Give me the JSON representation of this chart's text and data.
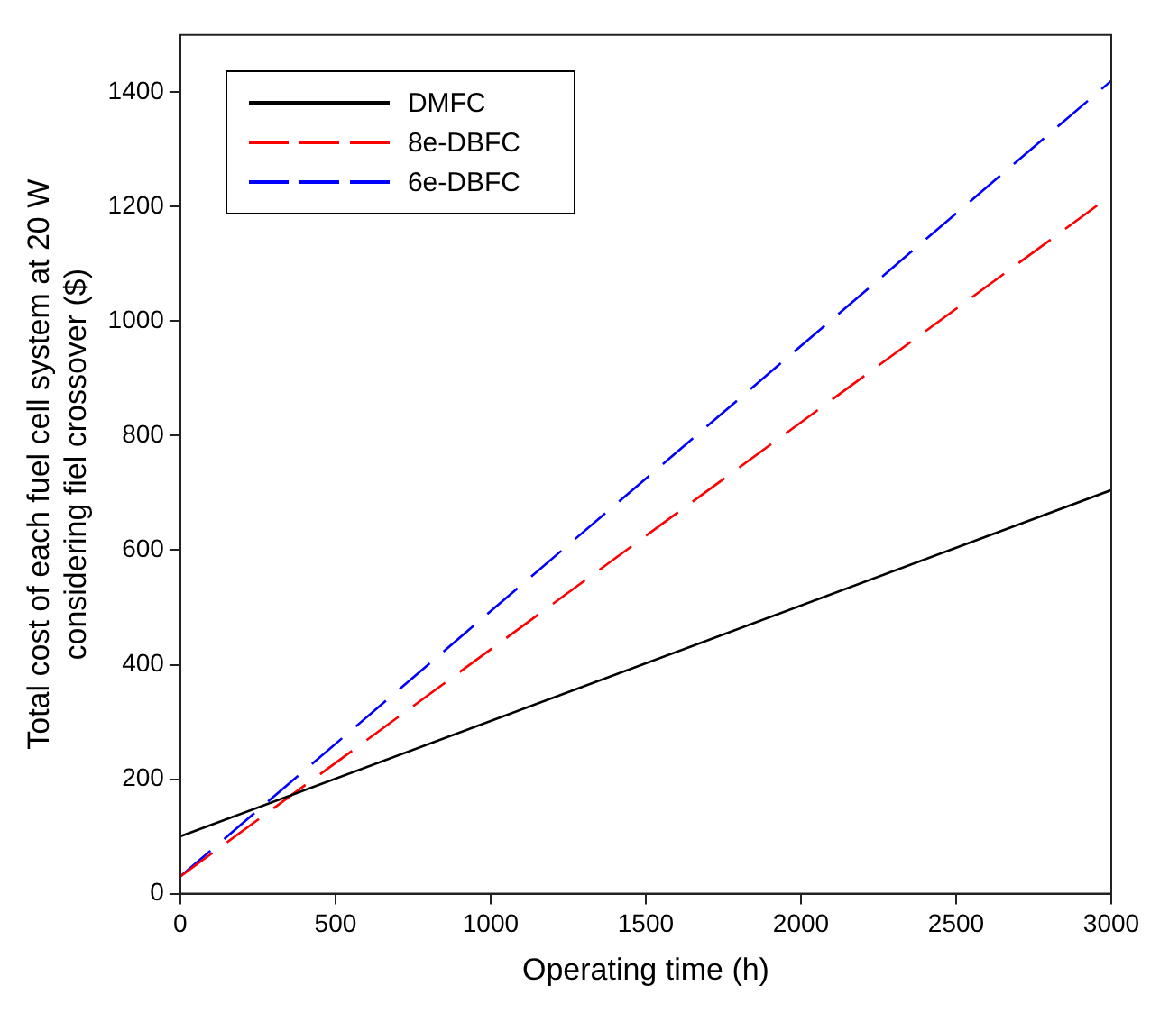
{
  "chart_data": {
    "type": "line",
    "xlabel": "Operating time (h)",
    "ylabel": "Total cost of each fuel cell system at 20 W\nconsidering fiel crossover ($)",
    "x": [
      0,
      3000
    ],
    "series": [
      {
        "name": "DMFC",
        "color": "#000000",
        "values": [
          100,
          705
        ],
        "line_style": "solid"
      },
      {
        "name": "8e-DBFC",
        "color": "#ff0000",
        "values": [
          30,
          1220
        ],
        "line_style": "dashed"
      },
      {
        "name": "6e-DBFC",
        "color": "#0000ff",
        "values": [
          30,
          1420
        ],
        "line_style": "dashed"
      }
    ],
    "xlim": [
      0,
      3000
    ],
    "xticks": [
      0,
      500,
      1000,
      1500,
      2000,
      2500,
      3000
    ],
    "ylim": [
      0,
      1500
    ],
    "yticks": [
      0,
      200,
      400,
      600,
      800,
      1000,
      1200,
      1400
    ],
    "grid": false,
    "legend": "top left",
    "marker": "none"
  }
}
